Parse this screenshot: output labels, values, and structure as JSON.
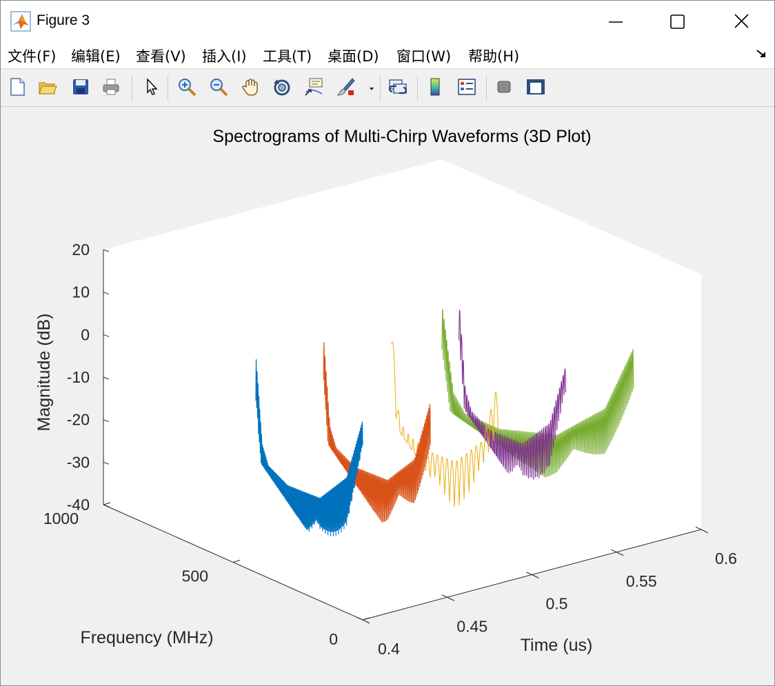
{
  "window": {
    "title": "Figure 3"
  },
  "menu": {
    "items": [
      {
        "label": "文件(F)"
      },
      {
        "label": "编辑(E)"
      },
      {
        "label": "查看(V)"
      },
      {
        "label": "插入(I)"
      },
      {
        "label": "工具(T)"
      },
      {
        "label": "桌面(D)"
      },
      {
        "label": "窗口(W)"
      },
      {
        "label": "帮助(H)"
      }
    ]
  },
  "toolbar": {
    "icons": [
      "new-figure-icon",
      "open-file-icon",
      "save-icon",
      "print-icon",
      "pointer-icon",
      "zoom-in-icon",
      "zoom-out-icon",
      "pan-icon",
      "rotate-3d-icon",
      "data-cursor-icon",
      "brush-icon",
      "link-plot-icon",
      "colorbar-icon",
      "legend-icon",
      "hide-plot-tools-icon",
      "show-plot-tools-icon"
    ]
  },
  "chart_data": {
    "type": "line",
    "view": "3d",
    "title": "Spectrograms of Multi-Chirp Waveforms (3D Plot)",
    "xlabel": "Time (us)",
    "ylabel": "Frequency (MHz)",
    "zlabel": "Magnitude (dB)",
    "xlim": [
      0.4,
      0.6
    ],
    "ylim": [
      0,
      1000
    ],
    "zlim": [
      -40,
      20
    ],
    "x_ticks": [
      "0.4",
      "0.45",
      "0.5",
      "0.55",
      "0.6"
    ],
    "y_ticks": [
      "0",
      "500",
      "1000"
    ],
    "z_ticks": [
      "-40",
      "-30",
      "-20",
      "-10",
      "0",
      "10",
      "20"
    ],
    "grid": false,
    "series": [
      {
        "color": "#0072BD",
        "x_range": [
          0.4,
          0.49
        ],
        "ripple_count": 120,
        "ripple_depth": 12,
        "profile": {
          "f": [
            0,
            150,
            400,
            700,
            880,
            940,
            980,
            1000
          ],
          "db": [
            7,
            -12,
            -26,
            -34,
            -36,
            -33,
            -20,
            -14
          ]
        }
      },
      {
        "color": "#D95319",
        "x_range": [
          0.44,
          0.53
        ],
        "ripple_count": 100,
        "ripple_depth": 11,
        "profile": {
          "f": [
            0,
            150,
            400,
            700,
            880,
            940,
            980,
            1000
          ],
          "db": [
            7,
            -12,
            -26,
            -34,
            -36,
            -33,
            -20,
            -14
          ]
        }
      },
      {
        "color": "#EDB120",
        "x_range": [
          0.48,
          0.57
        ],
        "ripple_count": 22,
        "ripple_depth": 11,
        "profile": {
          "f": [
            0,
            150,
            400,
            700,
            880,
            940,
            980,
            1000
          ],
          "db": [
            7,
            -12,
            -26,
            -34,
            -36,
            -33,
            -20,
            -14
          ]
        }
      },
      {
        "color": "#7E2F8E",
        "x_range": [
          0.52,
          0.61
        ],
        "ripple_count": 60,
        "ripple_depth": 11,
        "profile": {
          "f": [
            0,
            150,
            400,
            700,
            880,
            940,
            980,
            1000
          ],
          "db": [
            7,
            -12,
            -26,
            -34,
            -36,
            -33,
            -20,
            -14
          ]
        }
      },
      {
        "color": "#77AC30",
        "x_range": [
          0.56,
          0.6
        ],
        "ripple_count": 140,
        "ripple_depth": 11,
        "profile": {
          "f": [
            0,
            150,
            400,
            700,
            880,
            940,
            980,
            1000
          ],
          "db": [
            7,
            -12,
            -26,
            -34,
            -36,
            -33,
            -20,
            -14
          ]
        }
      }
    ]
  }
}
